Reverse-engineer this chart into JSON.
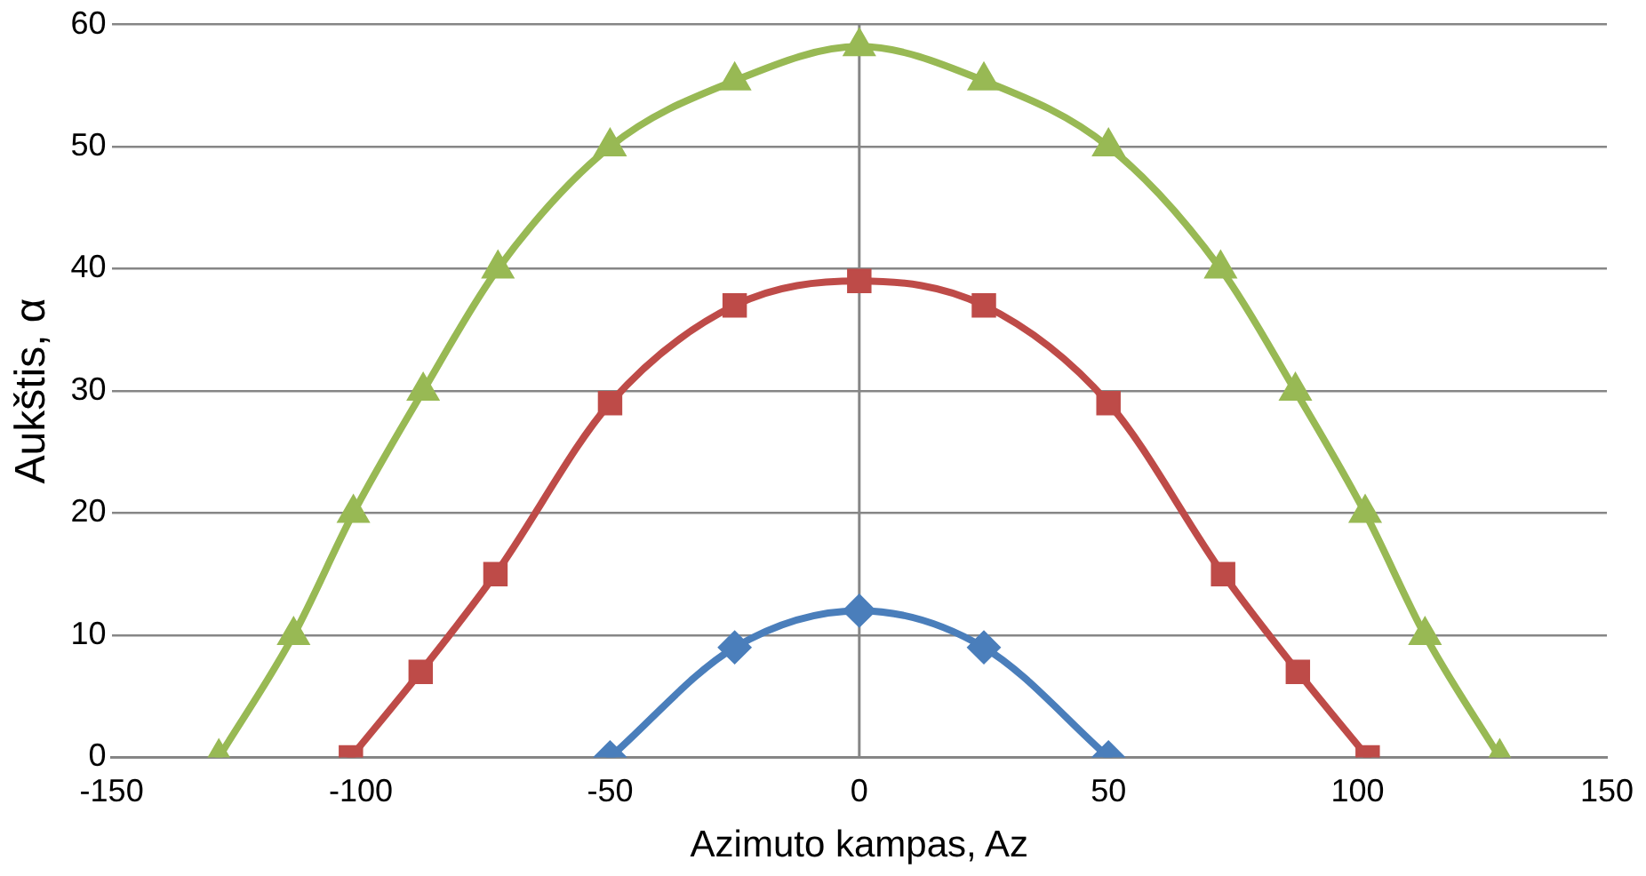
{
  "chart_data": {
    "type": "line",
    "xlabel": "Azimuto kampas, Az",
    "ylabel": "Aukštis, α",
    "xlim": [
      -150,
      150
    ],
    "xticks": [
      -150,
      -100,
      -50,
      0,
      50,
      100,
      150
    ],
    "ylim": [
      0,
      60
    ],
    "yticks": [
      0,
      10,
      20,
      30,
      40,
      50,
      60
    ],
    "grid": "y",
    "legend": false,
    "ref_lines": [
      {
        "axis": "x",
        "value": 0,
        "color": "#868686"
      }
    ],
    "series": [
      {
        "color": "#4a7ebb",
        "marker": "diamond",
        "x": [
          -50,
          -25,
          0,
          25,
          50
        ],
        "values": [
          0,
          9,
          12,
          9,
          0
        ]
      },
      {
        "color": "#be4b48",
        "marker": "square",
        "x": [
          -102,
          -88,
          -73,
          -50,
          -25,
          0,
          25,
          50,
          73,
          88,
          102
        ],
        "values": [
          0,
          7,
          15,
          29,
          37,
          39,
          37,
          29,
          15,
          7,
          0
        ]
      },
      {
        "color": "#98b954",
        "marker": "triangle",
        "x": [
          -128.5,
          -113.5,
          -101.5,
          -87.5,
          -72.5,
          -50,
          -25,
          0,
          25,
          50,
          72.5,
          87.5,
          101.5,
          113.5,
          128.5
        ],
        "values": [
          0,
          10,
          20,
          30,
          40,
          50,
          55.4,
          58.2,
          55.4,
          50,
          40,
          30,
          20,
          10,
          0
        ]
      }
    ]
  }
}
